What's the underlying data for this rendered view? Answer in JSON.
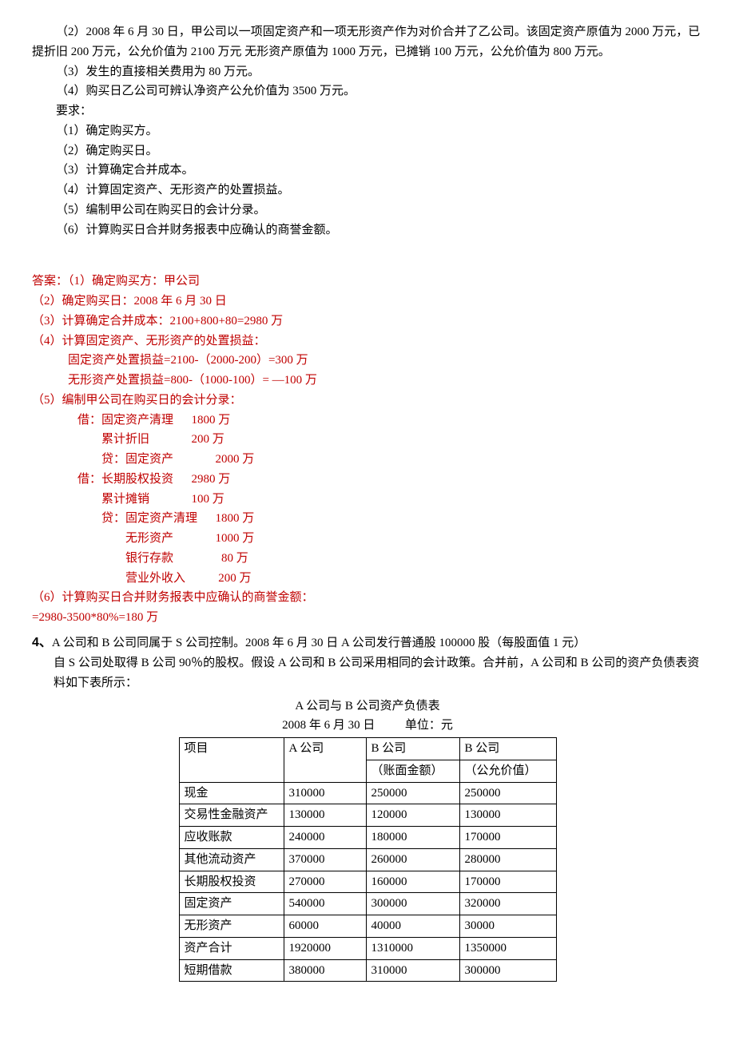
{
  "problem": {
    "p2": "（2）2008 年 6 月 30 日，甲公司以一项固定资产和一项无形资产作为对价合并了乙公司。该固定资产原值为 2000 万元，已提折旧 200 万元，公允价值为 2100 万元  无形资产原值为 1000 万元，已摊销 100 万元，公允价值为 800 万元。",
    "p3": "（3）发生的直接相关费用为 80 万元。",
    "p4": "（4）购买日乙公司可辨认净资产公允价值为 3500 万元。",
    "req_label": "要求：",
    "r1": "（1）确定购买方。",
    "r2": "（2）确定购买日。",
    "r3": "（3）计算确定合并成本。",
    "r4": "（4）计算固定资产、无形资产的处置损益。",
    "r5": "（5）编制甲公司在购买日的会计分录。",
    "r6": "（6）计算购买日合并财务报表中应确认的商誉金额。"
  },
  "answer": {
    "a1": "答案：（1）确定购买方：甲公司",
    "a2": "（2）确定购买日：2008 年 6 月 30 日",
    "a3": "（3）计算确定合并成本：2100+800+80=2980 万",
    "a4": "（4）计算固定资产、无形资产的处置损益：",
    "a4a": "固定资产处置损益=2100-（2000-200）=300 万",
    "a4b": "无形资产处置损益=800-（1000-100）= —100 万",
    "a5": "（5）编制甲公司在购买日的会计分录：",
    "e1l": "借：固定资产清理",
    "e1a": "1800 万",
    "e2l": "累计折旧",
    "e2a": "200 万",
    "e3l": "贷：固定资产",
    "e3a": "2000 万",
    "e4l": "借：长期股权投资",
    "e4a": "2980 万",
    "e5l": "累计摊销",
    "e5a": "100 万",
    "e6l": "贷：固定资产清理",
    "e6a": "1800 万",
    "e7l": "无形资产",
    "e7a": "1000 万",
    "e8l": "银行存款",
    "e8a": "  80 万",
    "e9l": "营业外收入",
    "e9a": " 200 万",
    "a6": "（6）计算购买日合并财务报表中应确认的商誉金额：",
    "a6b": "=2980-3500*80%=180 万"
  },
  "q4": {
    "num": "4、",
    "line1": "A 公司和 B 公司同属于 S 公司控制。2008 年 6 月 30 日 A 公司发行普通股 100000 股（每股面值 1 元）",
    "line2": "自 S 公司处取得 B 公司 90％的股权。假设 A 公司和 B 公司采用相同的会计政策。合并前，A 公司和 B 公司的资产负债表资料如下表所示：",
    "tbl_title": "A 公司与 B 公司资产负债表",
    "tbl_date": "2008 年 6 月 30 日",
    "tbl_unit": "单位：元",
    "head": {
      "c0": "项目",
      "c1": "A 公司",
      "c2a": "B 公司",
      "c2b": "（账面金额）",
      "c3a": "B 公司",
      "c3b": "（公允价值）"
    },
    "rows": [
      {
        "c0": "现金",
        "c1": "310000",
        "c2": "250000",
        "c3": "250000"
      },
      {
        "c0": "交易性金融资产",
        "c1": "130000",
        "c2": "120000",
        "c3": "130000"
      },
      {
        "c0": "应收账款",
        "c1": "240000",
        "c2": "180000",
        "c3": "170000"
      },
      {
        "c0": "其他流动资产",
        "c1": "370000",
        "c2": "260000",
        "c3": "280000"
      },
      {
        "c0": "长期股权投资",
        "c1": "270000",
        "c2": "160000",
        "c3": "170000"
      },
      {
        "c0": "固定资产",
        "c1": "540000",
        "c2": "300000",
        "c3": "320000"
      },
      {
        "c0": "无形资产",
        "c1": "60000",
        "c2": "40000",
        "c3": "30000"
      },
      {
        "c0": "资产合计",
        "c1": "1920000",
        "c2": "1310000",
        "c3": "1350000"
      },
      {
        "c0": "短期借款",
        "c1": "380000",
        "c2": "310000",
        "c3": "300000"
      }
    ]
  }
}
